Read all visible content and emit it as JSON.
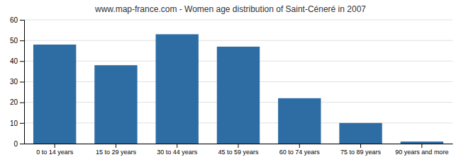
{
  "chart_data": {
    "type": "bar",
    "title": "www.map-france.com - Women age distribution of Saint-Céneré in 2007",
    "categories": [
      "0 to 14 years",
      "15 to 29 years",
      "30 to 44 years",
      "45 to 59 years",
      "60 to 74 years",
      "75 to 89 years",
      "90 years and more"
    ],
    "values": [
      48,
      38,
      53,
      47,
      22,
      10,
      1
    ],
    "color": "#2e6da4",
    "ylim": [
      0,
      60
    ],
    "yticks": [
      0,
      10,
      20,
      30,
      40,
      50,
      60
    ],
    "grid": true
  }
}
